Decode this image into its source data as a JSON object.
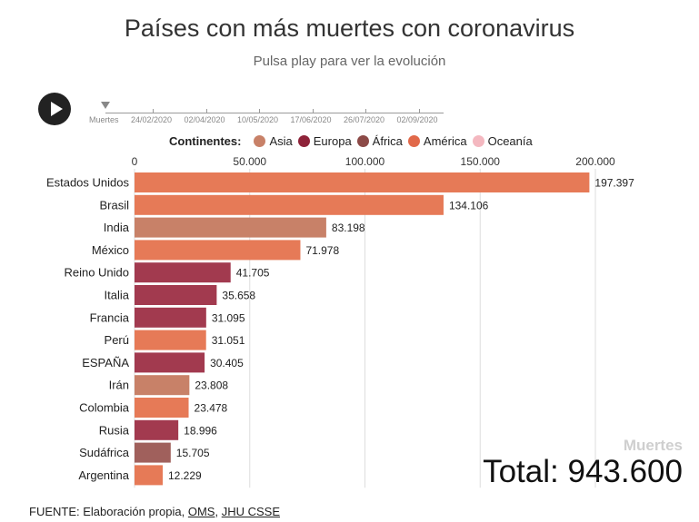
{
  "header": {
    "title": "Países con más muertes con coronavirus",
    "subtitle": "Pulsa play para ver la evolución"
  },
  "timeline": {
    "label": "Muertes",
    "dates": [
      "24/02/2020",
      "02/04/2020",
      "10/05/2020",
      "17/06/2020",
      "26/07/2020",
      "02/09/2020"
    ]
  },
  "legend": {
    "title": "Continentes:",
    "items": [
      {
        "label": "Asia",
        "color": "#c88168"
      },
      {
        "label": "Europa",
        "color": "#8e2339"
      },
      {
        "label": "África",
        "color": "#8c4a47"
      },
      {
        "label": "América",
        "color": "#e1694a"
      },
      {
        "label": "Oceanía",
        "color": "#f4b8c0"
      }
    ]
  },
  "chart_data": {
    "type": "bar",
    "orientation": "horizontal",
    "xlim": [
      0,
      200000
    ],
    "x_ticks": [
      {
        "value": 0,
        "label": "0"
      },
      {
        "value": 50000,
        "label": "50.000"
      },
      {
        "value": 100000,
        "label": "100.000"
      },
      {
        "value": 150000,
        "label": "150.000"
      },
      {
        "value": 200000,
        "label": "200.000"
      }
    ],
    "grid": true,
    "categories": [
      "Estados Unidos",
      "Brasil",
      "India",
      "México",
      "Reino Unido",
      "Italia",
      "Francia",
      "Perú",
      "ESPAÑA",
      "Irán",
      "Colombia",
      "Rusia",
      "Sudáfrica",
      "Argentina"
    ],
    "values": [
      197397,
      134106,
      83198,
      71978,
      41705,
      35658,
      31095,
      31051,
      30405,
      23808,
      23478,
      18996,
      15705,
      12229
    ],
    "value_labels": [
      "197.397",
      "134.106",
      "83.198",
      "71.978",
      "41.705",
      "35.658",
      "31.095",
      "31.051",
      "30.405",
      "23.808",
      "23.478",
      "18.996",
      "15.705",
      "12.229"
    ],
    "continents": [
      "América",
      "América",
      "Asia",
      "América",
      "Europa",
      "Europa",
      "Europa",
      "América",
      "Europa",
      "Asia",
      "América",
      "Europa",
      "África",
      "América"
    ],
    "colors": {
      "Asia": "#c88168",
      "Europa": "#a23a4f",
      "África": "#a0605c",
      "América": "#e67a57"
    }
  },
  "totals": {
    "label": "Muertes",
    "value": "Total: 943.600"
  },
  "footer": {
    "prefix": "FUENTE: Elaboración propia, ",
    "link1": "OMS",
    "sep": ", ",
    "link2": "JHU CSSE"
  }
}
